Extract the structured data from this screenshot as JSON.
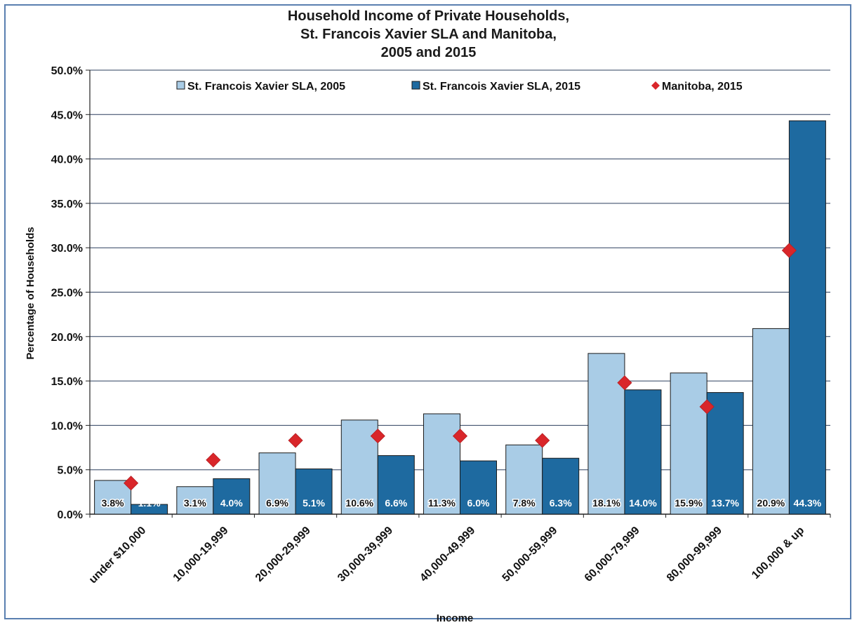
{
  "chart_data": {
    "type": "bar",
    "title_lines": [
      "Household Income of Private Households,",
      "St. Francois Xavier SLA and Manitoba,",
      "2005 and 2015"
    ],
    "xlabel": "Income",
    "ylabel": "Percentage of Households",
    "ylim": [
      0,
      50
    ],
    "yticks": [
      0,
      5,
      10,
      15,
      20,
      25,
      30,
      35,
      40,
      45,
      50
    ],
    "ytick_labels": [
      "0.0%",
      "5.0%",
      "10.0%",
      "15.0%",
      "20.0%",
      "25.0%",
      "30.0%",
      "35.0%",
      "40.0%",
      "45.0%",
      "50.0%"
    ],
    "grid": true,
    "legend_position": "top",
    "categories": [
      "under $10,000",
      "10,000-19,999",
      "20,000-29,999",
      "30,000-39,999",
      "40,000-49,999",
      "50,000-59,999",
      "60,000-79,999",
      "80,000-99,999",
      "100,000 & up"
    ],
    "series": [
      {
        "name": "St. Francois Xavier SLA, 2005",
        "kind": "bar",
        "color": "#a9cce6",
        "values": [
          3.8,
          3.1,
          6.9,
          10.6,
          11.3,
          7.8,
          18.1,
          15.9,
          20.9
        ],
        "labels": [
          "3.8%",
          "3.1%",
          "6.9%",
          "10.6%",
          "11.3%",
          "7.8%",
          "18.1%",
          "15.9%",
          "20.9%"
        ]
      },
      {
        "name": "St. Francois Xavier SLA, 2015",
        "kind": "bar",
        "color": "#1e6aa0",
        "values": [
          1.1,
          4.0,
          5.1,
          6.6,
          6.0,
          6.3,
          14.0,
          13.7,
          44.3
        ],
        "labels": [
          "1.1%",
          "4.0%",
          "5.1%",
          "6.6%",
          "6.0%",
          "6.3%",
          "14.0%",
          "13.7%",
          "44.3%"
        ]
      },
      {
        "name": "Manitoba, 2015",
        "kind": "marker",
        "color": "#d9262a",
        "values": [
          3.5,
          6.1,
          8.3,
          8.8,
          8.8,
          8.3,
          14.8,
          12.1,
          29.7
        ]
      }
    ]
  }
}
